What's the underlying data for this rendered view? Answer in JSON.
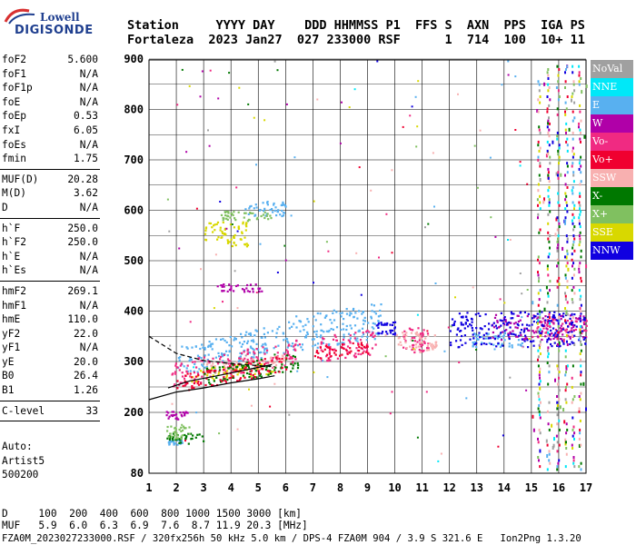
{
  "logo": {
    "line1": "Lowell",
    "line2": "DIGISONDE"
  },
  "header": {
    "line1": "Station     YYYY DAY    DDD HHMMSS P1  FFS S  AXN  PPS  IGA PS",
    "line2": "Fortaleza  2023 Jan27  027 233000 RSF      1  714  100  10+ 11"
  },
  "params": {
    "group1": [
      {
        "name": "foF2",
        "value": "5.600"
      },
      {
        "name": "foF1",
        "value": "N/A"
      },
      {
        "name": "foF1p",
        "value": "N/A"
      },
      {
        "name": "foE",
        "value": "N/A"
      },
      {
        "name": "foEp",
        "value": "0.53"
      },
      {
        "name": "fxI",
        "value": "6.05"
      },
      {
        "name": "foEs",
        "value": "N/A"
      },
      {
        "name": "fmin",
        "value": "1.75"
      }
    ],
    "group2": [
      {
        "name": "MUF(D)",
        "value": "20.28"
      },
      {
        "name": "M(D)",
        "value": "3.62"
      },
      {
        "name": "D",
        "value": "N/A"
      }
    ],
    "group3": [
      {
        "name": "h`F",
        "value": "250.0"
      },
      {
        "name": "h`F2",
        "value": "250.0"
      },
      {
        "name": "h`E",
        "value": "N/A"
      },
      {
        "name": "h`Es",
        "value": "N/A"
      }
    ],
    "group4": [
      {
        "name": "hmF2",
        "value": "269.1"
      },
      {
        "name": "hmF1",
        "value": "N/A"
      },
      {
        "name": "hmE",
        "value": "110.0"
      },
      {
        "name": "yF2",
        "value": "22.0"
      },
      {
        "name": "yF1",
        "value": "N/A"
      },
      {
        "name": "yE",
        "value": "20.0"
      },
      {
        "name": "B0",
        "value": "26.4"
      },
      {
        "name": "B1",
        "value": "1.26"
      }
    ],
    "group5": [
      {
        "name": "C-level",
        "value": "33"
      }
    ]
  },
  "auto": {
    "line1": "Auto:",
    "line2": "Artist5",
    "line3": "500200"
  },
  "legend": [
    {
      "label": "NoVal",
      "color": "#a0a0a0"
    },
    {
      "label": "NNE",
      "color": "#00e8f8"
    },
    {
      "label": "E",
      "color": "#58b0f0"
    },
    {
      "label": "W",
      "color": "#b000a8"
    },
    {
      "label": "Vo-",
      "color": "#f02a82"
    },
    {
      "label": "Vo+",
      "color": "#f00030"
    },
    {
      "label": "SSW",
      "color": "#f8b0b0"
    },
    {
      "label": "X-",
      "color": "#007800"
    },
    {
      "label": "X+",
      "color": "#80c060"
    },
    {
      "label": "SSE",
      "color": "#d8d800"
    },
    {
      "label": "NNW",
      "color": "#1000e0"
    }
  ],
  "muf_table": {
    "line1": "D     100  200  400  600  800 1000 1500 3000 [km]",
    "line2": "MUF   5.9  6.0  6.3  6.9  7.6  8.7 11.9 20.3 [MHz]"
  },
  "footer": "FZA0M_2023027233000.RSF / 320fx256h 50 kHz 5.0 km / DPS-4 FZA0M 904 / 3.9 S 321.6 E   Ion2Png 1.3.20",
  "chart_data": {
    "type": "scatter",
    "title": "",
    "xlabel": "",
    "ylabel": "",
    "xlim": [
      1,
      17
    ],
    "ylim": [
      80,
      900
    ],
    "x_ticks": [
      1,
      2,
      3,
      4,
      5,
      6,
      7,
      8,
      9,
      10,
      11,
      12,
      13,
      14,
      15,
      16,
      17
    ],
    "y_ticks": [
      80,
      200,
      300,
      400,
      500,
      600,
      700,
      800,
      900
    ],
    "grid": true,
    "series": [
      {
        "name": "E",
        "color": "#58b0f0",
        "clusters": [
          {
            "x": [
              2.0,
              6.0
            ],
            "y": [
              270,
              330
            ],
            "slope": 12
          },
          {
            "x": [
              6.0,
              9.5
            ],
            "y": [
              320,
              390
            ],
            "slope": 8
          },
          {
            "x": [
              4.5,
              6.0
            ],
            "y": [
              590,
              620
            ],
            "slope": 0
          },
          {
            "x": [
              12.8,
              14.8
            ],
            "y": [
              330,
              360
            ],
            "slope": 0
          },
          {
            "x": [
              1.6,
              2.2
            ],
            "y": [
              138,
              148
            ],
            "slope": 0
          }
        ]
      },
      {
        "name": "Vo-",
        "color": "#f02a82",
        "clusters": [
          {
            "x": [
              1.8,
              6.5
            ],
            "y": [
              250,
              300
            ],
            "slope": 10
          },
          {
            "x": [
              7.2,
              9.3
            ],
            "y": [
              300,
              350
            ],
            "slope": 8
          },
          {
            "x": [
              10.2,
              11.2
            ],
            "y": [
              320,
              370
            ],
            "slope": 0
          },
          {
            "x": [
              15.0,
              17.0
            ],
            "y": [
              350,
              390
            ],
            "slope": 0
          }
        ]
      },
      {
        "name": "W",
        "color": "#b000a8",
        "clusters": [
          {
            "x": [
              3.4,
              5.2
            ],
            "y": [
              440,
              455
            ],
            "slope": 0
          },
          {
            "x": [
              13.5,
              17.0
            ],
            "y": [
              345,
              395
            ],
            "slope": 0
          },
          {
            "x": [
              1.6,
              2.4
            ],
            "y": [
              188,
              205
            ],
            "slope": 0
          }
        ]
      },
      {
        "name": "NNW",
        "color": "#1000e0",
        "clusters": [
          {
            "x": [
              12.0,
              17.0
            ],
            "y": [
              330,
              400
            ],
            "slope": 0
          },
          {
            "x": [
              9.3,
              10.0
            ],
            "y": [
              355,
              380
            ],
            "slope": 0
          }
        ]
      },
      {
        "name": "SSW",
        "color": "#f8b0b0",
        "clusters": [
          {
            "x": [
              10.0,
              11.5
            ],
            "y": [
              320,
              360
            ],
            "slope": 0
          },
          {
            "x": [
              3.0,
              6.0
            ],
            "y": [
              275,
              300
            ],
            "slope": 5
          }
        ]
      },
      {
        "name": "SSE",
        "color": "#d8d800",
        "clusters": [
          {
            "x": [
              3.0,
              4.6
            ],
            "y": [
              530,
              580
            ],
            "slope": 0
          },
          {
            "x": [
              2.5,
              5.5
            ],
            "y": [
              260,
              285
            ],
            "slope": 6
          }
        ]
      },
      {
        "name": "X-",
        "color": "#007800",
        "clusters": [
          {
            "x": [
              1.6,
              3.0
            ],
            "y": [
              140,
              160
            ],
            "slope": 0
          },
          {
            "x": [
              3.0,
              6.5
            ],
            "y": [
              255,
              290
            ],
            "slope": 8
          }
        ]
      },
      {
        "name": "X+",
        "color": "#80c060",
        "clusters": [
          {
            "x": [
              3.5,
              5.5
            ],
            "y": [
              580,
              600
            ],
            "slope": 0
          },
          {
            "x": [
              1.6,
              2.5
            ],
            "y": [
              150,
              175
            ],
            "slope": 0
          }
        ]
      },
      {
        "name": "Vo+",
        "color": "#f00030",
        "clusters": [
          {
            "x": [
              2.0,
              6.0
            ],
            "y": [
              240,
              275
            ],
            "slope": 10
          },
          {
            "x": [
              7.0,
              9.0
            ],
            "y": [
              305,
              330
            ],
            "slope": 6
          }
        ]
      }
    ],
    "profile_curves": [
      {
        "name": "lower",
        "x": [
          1.0,
          2.0,
          3.0,
          4.0,
          5.0,
          5.6
        ],
        "y": [
          225,
          240,
          248,
          258,
          266,
          272
        ],
        "color": "#000"
      },
      {
        "name": "upper",
        "x": [
          1.0,
          2.0,
          3.0,
          4.0,
          5.0,
          5.6
        ],
        "y": [
          350,
          316,
          302,
          296,
          292,
          290
        ],
        "color": "#000",
        "dashed": true
      },
      {
        "name": "trace",
        "x": [
          1.7,
          2.5,
          3.5,
          4.5,
          5.5
        ],
        "y": [
          248,
          262,
          272,
          283,
          294
        ],
        "color": "#000"
      }
    ]
  }
}
